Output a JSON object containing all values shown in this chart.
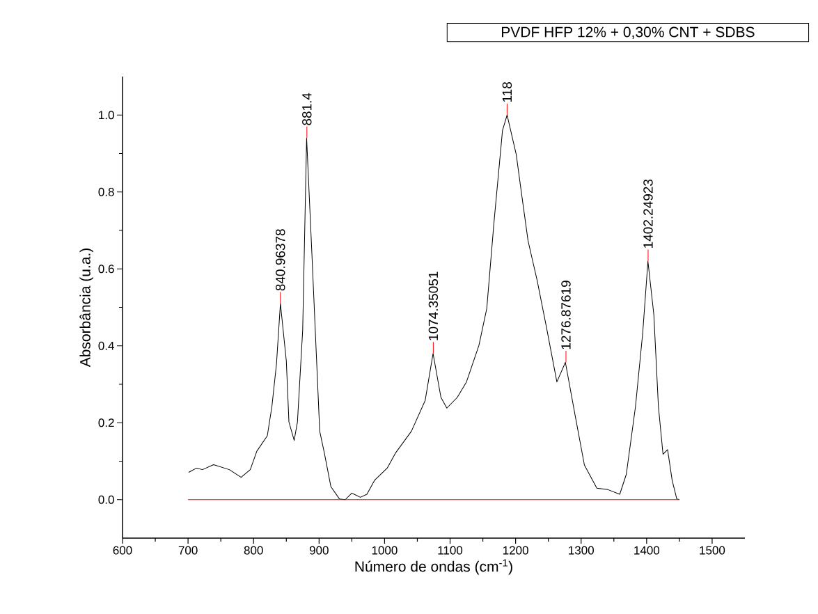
{
  "chart_data": {
    "type": "line",
    "xlabel": "Número de ondas (cm$^{-1}$)",
    "ylabel": "Absorbância (u.a.)",
    "xlim": [
      600,
      1550
    ],
    "xticks": [
      600,
      700,
      800,
      900,
      1000,
      1100,
      1200,
      1300,
      1400,
      1500
    ],
    "ylim": [
      -0.1,
      1.1
    ],
    "yticks": [
      {
        "value": 0.0,
        "label": "0.0"
      },
      {
        "value": 0.2,
        "label": "0.2"
      },
      {
        "value": 0.4,
        "label": "0.4"
      },
      {
        "value": 0.6,
        "label": "0.6"
      },
      {
        "value": 0.8,
        "label": "0.8"
      },
      {
        "value": 1.0,
        "label": "1.0"
      }
    ],
    "grid": false,
    "legend": "top right",
    "marker": "none",
    "line_style": "solid",
    "series": [
      {
        "name": "PVDF HFP 12% + 0,30% CNT + SDBS",
        "color": "#000000",
        "x": [
          701,
          713,
          722,
          739,
          763,
          781,
          795,
          805,
          821,
          828,
          835,
          841,
          850,
          854,
          862,
          867,
          875,
          881,
          889,
          901,
          908,
          918,
          931,
          940,
          950,
          963,
          973,
          985,
          1004,
          1017,
          1041,
          1062,
          1074,
          1086,
          1095,
          1111,
          1125,
          1144,
          1156,
          1167,
          1180,
          1187,
          1201,
          1210,
          1219,
          1233,
          1247,
          1263,
          1276,
          1291,
          1305,
          1324,
          1341,
          1359,
          1369,
          1383,
          1394,
          1402,
          1411,
          1418,
          1425,
          1432,
          1439,
          1446,
          1450
        ],
        "values": [
          0.071,
          0.082,
          0.078,
          0.091,
          0.078,
          0.058,
          0.078,
          0.126,
          0.166,
          0.242,
          0.353,
          0.51,
          0.361,
          0.202,
          0.154,
          0.202,
          0.441,
          0.94,
          0.641,
          0.178,
          0.122,
          0.034,
          0.002,
          0.0,
          0.017,
          0.006,
          0.014,
          0.051,
          0.082,
          0.122,
          0.178,
          0.258,
          0.38,
          0.266,
          0.238,
          0.266,
          0.306,
          0.401,
          0.497,
          0.721,
          0.96,
          1.0,
          0.897,
          0.784,
          0.673,
          0.569,
          0.449,
          0.306,
          0.357,
          0.218,
          0.09,
          0.03,
          0.026,
          0.014,
          0.066,
          0.242,
          0.433,
          0.62,
          0.481,
          0.242,
          0.118,
          0.13,
          0.05,
          0.002,
          0.0
        ]
      },
      {
        "color": "#ff0000",
        "x": [
          700,
          1450
        ],
        "values": [
          0,
          0
        ]
      }
    ],
    "annotations": [
      {
        "text": "840.96378",
        "x": 840.96378,
        "y": 0.51
      },
      {
        "text": "881.4",
        "x": 881.4,
        "y": 0.94
      },
      {
        "text": "1074.35051",
        "x": 1074.35051,
        "y": 0.38
      },
      {
        "text": "118",
        "x": 1187,
        "y": 1.0
      },
      {
        "text": "1276.87619",
        "x": 1276.87619,
        "y": 0.357
      },
      {
        "text": "1402.24923",
        "x": 1402.24923,
        "y": 0.62
      }
    ]
  }
}
